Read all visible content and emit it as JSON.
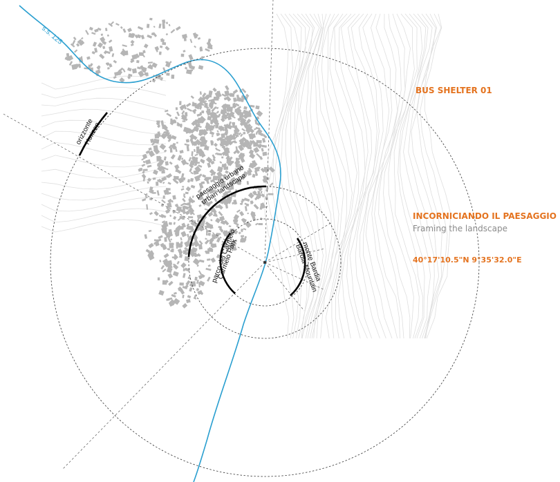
{
  "project": {
    "title": "BUS SHELTER 01",
    "heading_it": "INCORNICIANDO IL PAESAGGIO",
    "heading_en": "Framing the landscape",
    "coordinates": "40°17'10.5\"N 9°35'32.0\"E"
  },
  "road_label": "s.s. 125",
  "arc_labels": {
    "horizon": {
      "it": "orizzonte",
      "en": "Horizon"
    },
    "urban": {
      "it": "paesaggio urbano",
      "en": "urban landscape"
    },
    "park": {
      "it": "parco del Carmelo",
      "en": "Carmelo Park"
    },
    "mountain": {
      "it": "monte Bardia",
      "en": "Bardia Mountain"
    }
  },
  "colors": {
    "accent": "#e4731f",
    "subtitle": "#8a8a8a",
    "river": "#2a9fd0",
    "buildings": "#b5b5b5",
    "contours": "#dedede",
    "circles": "#333333"
  }
}
